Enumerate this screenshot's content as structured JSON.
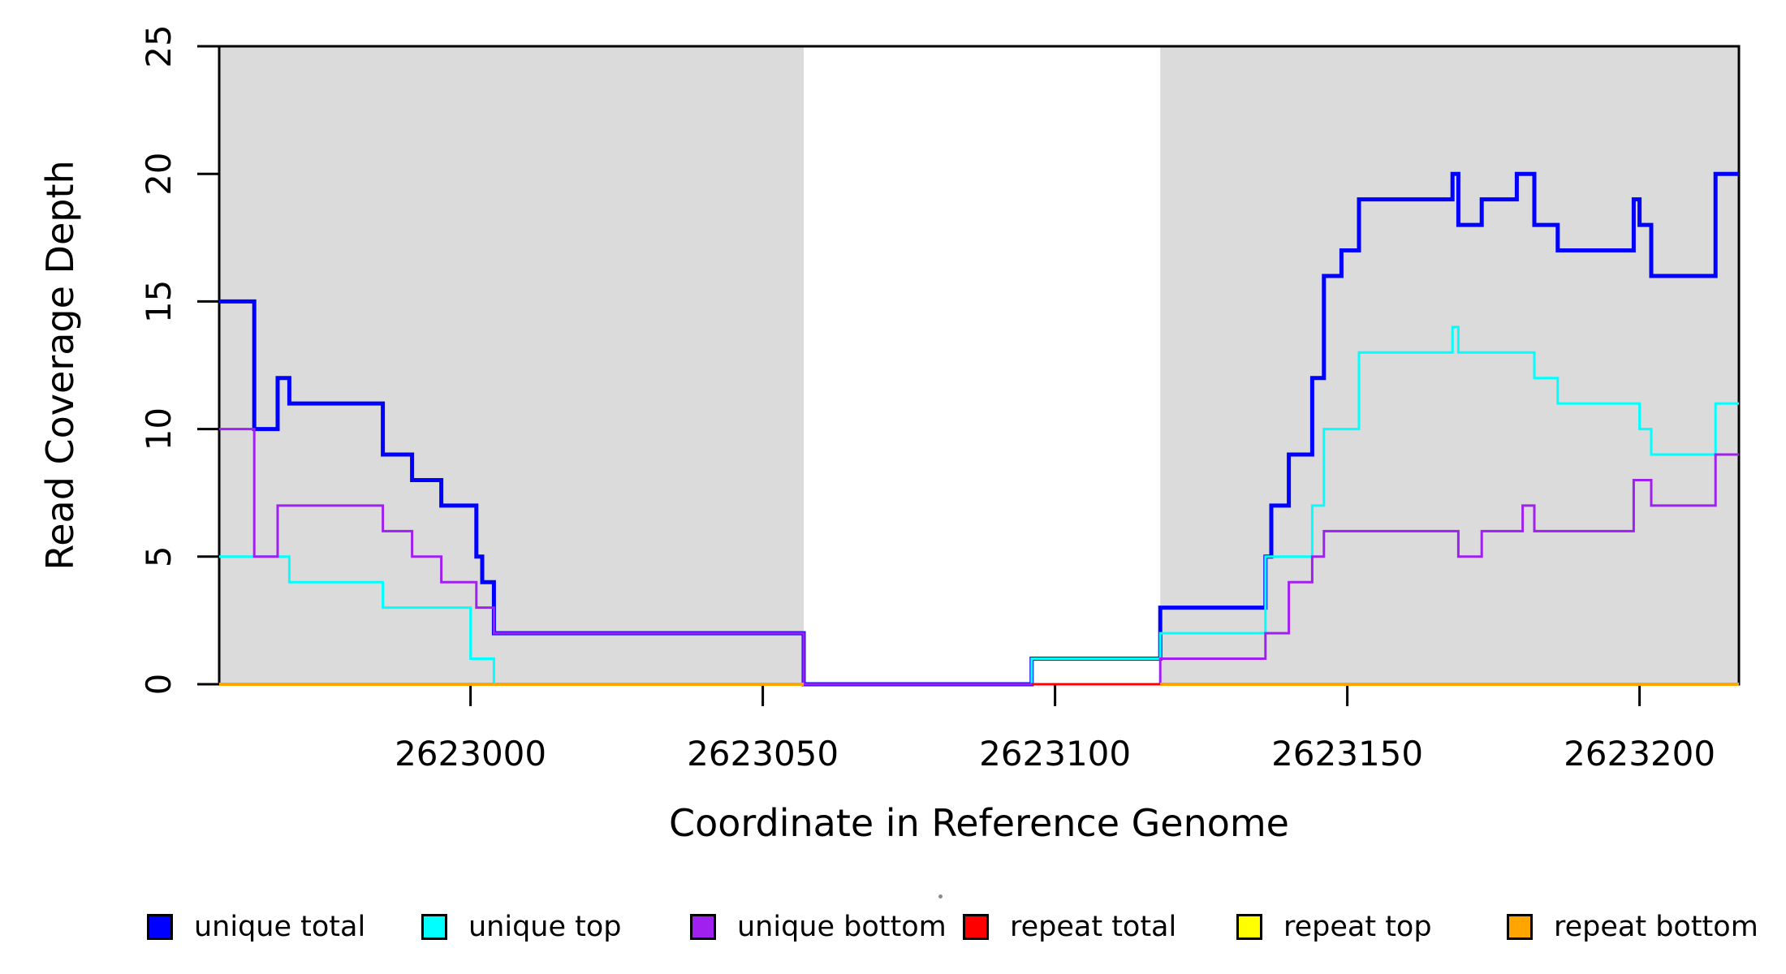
{
  "chart_data": {
    "type": "line",
    "subtype": "step-coverage-plot",
    "title": "",
    "xlabel": "Coordinate in Reference Genome",
    "ylabel": "Read Coverage Depth",
    "xlim": [
      2622957,
      2623217
    ],
    "ylim": [
      0,
      25
    ],
    "grid": false,
    "x_ticks": [
      2623000,
      2623050,
      2623100,
      2623150,
      2623200
    ],
    "x_tick_labels": [
      "2623000",
      "2623050",
      "2623100",
      "2623150",
      "2623200"
    ],
    "y_ticks": [
      0,
      5,
      10,
      15,
      20,
      25
    ],
    "y_tick_labels": [
      "0",
      "5",
      "10",
      "15",
      "20",
      "25"
    ],
    "shaded_regions": {
      "color": "#DBDBDB",
      "ranges": [
        [
          2622957,
          2623057
        ],
        [
          2623118,
          2623217
        ]
      ]
    },
    "series": [
      {
        "name": "unique total",
        "color": "#0000FF",
        "width": 5,
        "segments": [
          [
            [
              2622957,
              15
            ],
            [
              2622963,
              10
            ],
            [
              2622967,
              12
            ],
            [
              2622969,
              11
            ],
            [
              2622985,
              9
            ],
            [
              2622990,
              8
            ],
            [
              2622995,
              7
            ],
            [
              2623001,
              5
            ],
            [
              2623002,
              4
            ],
            [
              2623004,
              2
            ],
            [
              2623057,
              0
            ],
            [
              2623096,
              1
            ],
            [
              2623118,
              3
            ],
            [
              2623136,
              5
            ],
            [
              2623137,
              7
            ],
            [
              2623140,
              9
            ],
            [
              2623144,
              12
            ],
            [
              2623146,
              16
            ],
            [
              2623149,
              17
            ],
            [
              2623152,
              19
            ],
            [
              2623168,
              20
            ],
            [
              2623169,
              18
            ],
            [
              2623173,
              19
            ],
            [
              2623179,
              20
            ],
            [
              2623182,
              18
            ],
            [
              2623186,
              17
            ],
            [
              2623199,
              19
            ],
            [
              2623200,
              18
            ],
            [
              2623202,
              16
            ],
            [
              2623213,
              20
            ],
            [
              2623217,
              20
            ]
          ]
        ]
      },
      {
        "name": "unique top",
        "color": "#00FFFF",
        "width": 3,
        "segments": [
          [
            [
              2622957,
              5
            ],
            [
              2622969,
              4
            ],
            [
              2622985,
              3
            ],
            [
              2623000,
              1
            ],
            [
              2623004,
              0
            ],
            [
              2623096,
              1
            ],
            [
              2623118,
              2
            ],
            [
              2623136,
              5
            ],
            [
              2623144,
              7
            ],
            [
              2623146,
              10
            ],
            [
              2623152,
              13
            ],
            [
              2623168,
              14
            ],
            [
              2623169,
              13
            ],
            [
              2623182,
              12
            ],
            [
              2623186,
              11
            ],
            [
              2623200,
              10
            ],
            [
              2623202,
              9
            ],
            [
              2623213,
              11
            ],
            [
              2623217,
              11
            ]
          ]
        ]
      },
      {
        "name": "unique bottom",
        "color": "#A020F0",
        "width": 3,
        "segments": [
          [
            [
              2622957,
              10
            ],
            [
              2622963,
              5
            ],
            [
              2622967,
              7
            ],
            [
              2622985,
              6
            ],
            [
              2622990,
              5
            ],
            [
              2622995,
              4
            ],
            [
              2623001,
              3
            ],
            [
              2623004,
              2
            ],
            [
              2623057,
              0
            ],
            [
              2623118,
              1
            ],
            [
              2623136,
              2
            ],
            [
              2623140,
              4
            ],
            [
              2623144,
              5
            ],
            [
              2623146,
              6
            ],
            [
              2623169,
              5
            ],
            [
              2623173,
              6
            ],
            [
              2623180,
              7
            ],
            [
              2623182,
              6
            ],
            [
              2623199,
              8
            ],
            [
              2623202,
              7
            ],
            [
              2623213,
              9
            ],
            [
              2623217,
              9
            ]
          ]
        ]
      },
      {
        "name": "repeat total",
        "color": "#FF0000",
        "width": 3,
        "segments": [
          [
            [
              2623096,
              0
            ],
            [
              2623118,
              0
            ]
          ]
        ]
      },
      {
        "name": "repeat top",
        "color": "#FFFF00",
        "width": 3,
        "segments": [
          [
            [
              2622957,
              0
            ],
            [
              2623057,
              0
            ]
          ],
          [
            [
              2623118,
              0
            ],
            [
              2623217,
              0
            ]
          ]
        ]
      },
      {
        "name": "repeat bottom",
        "color": "#FFA500",
        "width": 4,
        "segments": [
          [
            [
              2622957,
              0
            ],
            [
              2623057,
              0
            ]
          ],
          [
            [
              2623118,
              0
            ],
            [
              2623217,
              0
            ]
          ]
        ]
      }
    ],
    "legend": {
      "position": "bottom",
      "entries": [
        {
          "label": "unique total",
          "color": "#0000FF"
        },
        {
          "label": "unique top",
          "color": "#00FFFF"
        },
        {
          "label": "unique bottom",
          "color": "#A020F0"
        },
        {
          "label": "repeat total",
          "color": "#FF0000"
        },
        {
          "label": "repeat top",
          "color": "#FFFF00"
        },
        {
          "label": "repeat bottom",
          "color": "#FFA500"
        }
      ]
    }
  }
}
